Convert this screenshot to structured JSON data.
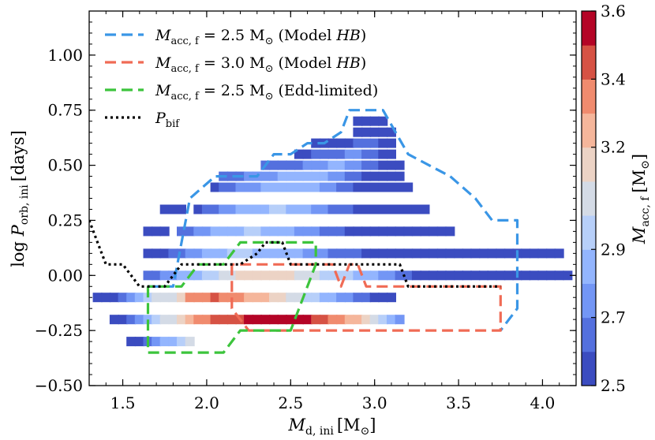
{
  "chart_data": {
    "type": "scatter",
    "xlabel_main": "M",
    "xlabel_sub": "d, ini",
    "xlabel_unit": "[M",
    "xlabel_unit_end": "]",
    "ylabel_pre": "log ",
    "ylabel_main": "P",
    "ylabel_sub": "orb, ini",
    "ylabel_unit": "[days]",
    "xlim": [
      1.3,
      4.2
    ],
    "ylim": [
      -0.5,
      1.2
    ],
    "xticks": [
      1.5,
      2.0,
      2.5,
      3.0,
      3.5,
      4.0
    ],
    "xtick_labels": [
      "1.5",
      "2.0",
      "2.5",
      "3.0",
      "3.5",
      "4.0"
    ],
    "yticks": [
      -0.5,
      -0.25,
      0.0,
      0.25,
      0.5,
      0.75,
      1.0
    ],
    "ytick_labels": [
      "−0.50",
      "−0.25",
      "0.00",
      "0.25",
      "0.50",
      "0.75",
      "1.00"
    ],
    "colorbar": {
      "label_main": "M",
      "label_sub": "acc, f",
      "label_unit": "[M",
      "label_unit_end": "]",
      "vmin": 2.5,
      "vmax": 3.6,
      "ticks": [
        2.5,
        2.7,
        2.9,
        3.2,
        3.4,
        3.6
      ],
      "tick_labels": [
        "2.5",
        "2.7",
        "2.9",
        "3.2",
        "3.4",
        "3.6"
      ],
      "bands": [
        {
          "lo": 2.5,
          "hi": 2.6,
          "color": "#3b4cc0"
        },
        {
          "lo": 2.6,
          "hi": 2.7,
          "color": "#5470de"
        },
        {
          "lo": 2.7,
          "hi": 2.8,
          "color": "#7396f5"
        },
        {
          "lo": 2.8,
          "hi": 2.9,
          "color": "#93b5fe"
        },
        {
          "lo": 2.9,
          "hi": 3.0,
          "color": "#b7cff9"
        },
        {
          "lo": 3.0,
          "hi": 3.1,
          "color": "#d4dbe6"
        },
        {
          "lo": 3.1,
          "hi": 3.2,
          "color": "#ecd3c5"
        },
        {
          "lo": 3.2,
          "hi": 3.3,
          "color": "#f5b69b"
        },
        {
          "lo": 3.3,
          "hi": 3.4,
          "color": "#f08b6e"
        },
        {
          "lo": 3.4,
          "hi": 3.5,
          "color": "#d65244"
        },
        {
          "lo": 3.5,
          "hi": 3.6,
          "color": "#b40426"
        }
      ]
    },
    "legend": {
      "placement": "upper-left",
      "entries": [
        {
          "main": "M",
          "sub": "acc, f",
          "rest": " = 2.5 M",
          "note": " (Model ",
          "note_it": "HB",
          "note_end": ")",
          "color": "#3a96e6",
          "dash": "14,7",
          "sun": true
        },
        {
          "main": "M",
          "sub": "acc, f",
          "rest": " = 3.0 M",
          "note": " (Model ",
          "note_it": "HB",
          "note_end": ")",
          "color": "#f06b55",
          "dash": "14,7",
          "sun": true
        },
        {
          "main": "M",
          "sub": "acc, f",
          "rest": " = 2.5 M",
          "note": " (Edd-limited)",
          "note_it": "",
          "note_end": "",
          "color": "#3cc43c",
          "dash": "14,7",
          "sun": true
        },
        {
          "main": "P",
          "sub": "bif",
          "rest": "",
          "note": "",
          "note_it": "",
          "note_end": "",
          "color": "#000000",
          "dash": "3,4",
          "sun": false
        }
      ]
    },
    "contours": [
      {
        "name": "Macc,f = 2.5 (Model HB)",
        "color": "#3a96e6",
        "dash": "14,7",
        "points": [
          [
            1.65,
            -0.05
          ],
          [
            1.8,
            -0.05
          ],
          [
            1.9,
            0.35
          ],
          [
            2.05,
            0.45
          ],
          [
            2.3,
            0.45
          ],
          [
            2.4,
            0.55
          ],
          [
            2.5,
            0.55
          ],
          [
            2.6,
            0.6
          ],
          [
            2.7,
            0.6
          ],
          [
            2.8,
            0.65
          ],
          [
            2.85,
            0.75
          ],
          [
            3.05,
            0.75
          ],
          [
            3.2,
            0.55
          ],
          [
            3.45,
            0.45
          ],
          [
            3.6,
            0.35
          ],
          [
            3.7,
            0.25
          ],
          [
            3.85,
            0.25
          ],
          [
            3.85,
            -0.15
          ],
          [
            3.75,
            -0.25
          ]
        ]
      },
      {
        "name": "Macc,f = 3.0 (Model HB)",
        "color": "#f06b55",
        "dash": "14,7",
        "points": [
          [
            2.15,
            0.05
          ],
          [
            2.15,
            -0.15
          ],
          [
            2.25,
            -0.25
          ],
          [
            3.75,
            -0.25
          ],
          [
            3.75,
            -0.05
          ],
          [
            2.95,
            -0.05
          ],
          [
            2.9,
            0.05
          ],
          [
            2.85,
            0.05
          ],
          [
            2.8,
            -0.05
          ],
          [
            2.75,
            0.05
          ],
          [
            2.15,
            0.05
          ]
        ]
      },
      {
        "name": "Macc,f = 2.5 (Edd-limited)",
        "color": "#3cc43c",
        "dash": "14,7",
        "points": [
          [
            1.65,
            -0.05
          ],
          [
            1.65,
            -0.35
          ],
          [
            2.1,
            -0.35
          ],
          [
            2.2,
            -0.25
          ],
          [
            2.5,
            -0.25
          ],
          [
            2.65,
            0.05
          ],
          [
            2.65,
            0.15
          ],
          [
            2.2,
            0.15
          ],
          [
            2.1,
            0.05
          ],
          [
            1.95,
            0.05
          ],
          [
            1.85,
            -0.05
          ],
          [
            1.65,
            -0.05
          ]
        ]
      },
      {
        "name": "Pbif",
        "color": "#000000",
        "dash": "3,4",
        "points": [
          [
            1.3,
            0.25
          ],
          [
            1.35,
            0.15
          ],
          [
            1.4,
            0.05
          ],
          [
            1.5,
            0.05
          ],
          [
            1.6,
            -0.05
          ],
          [
            1.75,
            -0.05
          ],
          [
            1.85,
            0.05
          ],
          [
            2.2,
            0.05
          ],
          [
            2.3,
            0.1
          ],
          [
            2.35,
            0.15
          ],
          [
            2.45,
            0.15
          ],
          [
            2.5,
            0.05
          ],
          [
            3.15,
            0.05
          ],
          [
            3.2,
            -0.05
          ],
          [
            3.75,
            -0.05
          ]
        ]
      }
    ],
    "marker_step_x": 0.05,
    "marker_step_y": 0.05,
    "rows": [
      {
        "y": 0.7,
        "x0": 2.9,
        "values": [
          2.5,
          2.5,
          2.5,
          2.5
        ]
      },
      {
        "y": 0.65,
        "x0": 2.9,
        "values": [
          2.5,
          2.5,
          2.5,
          2.5,
          2.5
        ]
      },
      {
        "y": 0.6,
        "x0": 2.65,
        "values": [
          2.5,
          2.5,
          2.5,
          2.5,
          2.55,
          2.6,
          2.6,
          2.6,
          2.5,
          2.5
        ]
      },
      {
        "y": 0.55,
        "x0": 2.55,
        "values": [
          2.55,
          2.55,
          2.6,
          2.6,
          2.65,
          2.65,
          2.7,
          2.7,
          2.65,
          2.6,
          2.55,
          2.55
        ]
      },
      {
        "y": 0.5,
        "x0": 2.35,
        "values": [
          2.6,
          2.6,
          2.6,
          2.65,
          2.65,
          2.7,
          2.75,
          2.75,
          2.8,
          2.8,
          2.75,
          2.7,
          2.65,
          2.6,
          2.55,
          2.55,
          2.5
        ]
      },
      {
        "y": 0.45,
        "x0": 2.1,
        "values": [
          2.6,
          2.6,
          2.65,
          2.7,
          2.7,
          2.75,
          2.75,
          2.8,
          2.8,
          2.85,
          2.85,
          2.85,
          2.8,
          2.75,
          2.7,
          2.65,
          2.6,
          2.55,
          2.5,
          2.5,
          2.5,
          2.5
        ]
      },
      {
        "y": 0.4,
        "x0": 2.05,
        "values": [
          2.55,
          2.6,
          2.65,
          2.7,
          2.75,
          2.75,
          2.8,
          2.85,
          2.85,
          2.85,
          2.85,
          2.8,
          2.8,
          2.75,
          2.7,
          2.65,
          2.6,
          2.55,
          2.55,
          2.5,
          2.5,
          2.5,
          2.5,
          2.5
        ]
      },
      {
        "y": 0.3,
        "x0": 1.75,
        "values": [
          2.5,
          2.5,
          2.5
        ]
      },
      {
        "y": 0.3,
        "x0": 1.95,
        "values": [
          2.55,
          2.6,
          2.65,
          2.7,
          2.75,
          2.8,
          2.85,
          2.85,
          2.85,
          2.9,
          2.9,
          2.85,
          2.8,
          2.8,
          2.75,
          2.7,
          2.65,
          2.6,
          2.6,
          2.55,
          2.5,
          2.5,
          2.5,
          2.5,
          2.5,
          2.5,
          2.5,
          2.5
        ]
      },
      {
        "y": 0.2,
        "x0": 1.65,
        "values": [
          2.5,
          2.55,
          2.55
        ]
      },
      {
        "y": 0.2,
        "x0": 1.85,
        "values": [
          2.6,
          2.65,
          2.7,
          2.75,
          2.8,
          2.85,
          2.85,
          2.85,
          2.9,
          2.9,
          2.85,
          2.85,
          2.8,
          2.8,
          2.75,
          2.7,
          2.7,
          2.65,
          2.6,
          2.6,
          2.55,
          2.55,
          2.5,
          2.5,
          2.5,
          2.5,
          2.5,
          2.5,
          2.5,
          2.5,
          2.5,
          2.5,
          2.5
        ]
      },
      {
        "y": 0.1,
        "x0": 1.65,
        "values": [
          2.5,
          2.55,
          2.55,
          2.6,
          2.65,
          2.7,
          2.75,
          2.8,
          2.85,
          2.85,
          2.9,
          2.9,
          2.9,
          2.85,
          2.85,
          2.85,
          2.85,
          2.8,
          2.8,
          2.75,
          2.7,
          2.7,
          2.65,
          2.65,
          2.6,
          2.6,
          2.55,
          2.55,
          2.5,
          2.5,
          2.5,
          2.5,
          2.5,
          2.5,
          2.5,
          2.5,
          2.5,
          2.5,
          2.5,
          2.5,
          2.5,
          2.5,
          2.5,
          2.5,
          2.5,
          2.5,
          2.5,
          2.5,
          2.5,
          2.5
        ]
      },
      {
        "y": 0.0,
        "x0": 1.65,
        "values": [
          2.6,
          2.65,
          2.7,
          2.75,
          2.8,
          2.8,
          2.85,
          2.9,
          2.9,
          3.0,
          3.05,
          3.1,
          3.15,
          3.15,
          3.1,
          3.1,
          3.15,
          3.1,
          3.05,
          3.05,
          3.0,
          2.95,
          2.95,
          2.9,
          2.9,
          2.85,
          2.85,
          2.8,
          2.75,
          2.7,
          2.65,
          2.6,
          2.55,
          2.5,
          2.5,
          2.5,
          2.5,
          2.5,
          2.5,
          2.5,
          2.5,
          2.5,
          2.5,
          2.5,
          2.5,
          2.5,
          2.5,
          2.5,
          2.5,
          2.5,
          2.5
        ]
      },
      {
        "y": -0.1,
        "x0": 1.35,
        "values": [
          2.5,
          2.5,
          2.55,
          2.6,
          2.75,
          2.85,
          2.9,
          3.0,
          3.0,
          3.05,
          3.1,
          3.3,
          3.35,
          3.35,
          3.4,
          3.35,
          3.3,
          3.3,
          3.25,
          3.2,
          3.2,
          3.15,
          3.1,
          3.05,
          3.0,
          2.95,
          2.9,
          2.85,
          2.8,
          2.75,
          2.7,
          2.65,
          2.6,
          2.55,
          2.5,
          2.5
        ]
      },
      {
        "y": -0.2,
        "x0": 1.45,
        "values": [
          2.5,
          2.55,
          2.6,
          2.7,
          2.8,
          2.9,
          3.0,
          3.05,
          3.1,
          3.2,
          3.3,
          3.35,
          3.4,
          3.4,
          3.45,
          3.45,
          3.5,
          3.55,
          3.55,
          3.55,
          3.55,
          3.55,
          3.5,
          3.5,
          3.45,
          3.4,
          3.35,
          3.3,
          3.25,
          3.2,
          3.1,
          3.0,
          2.9,
          2.8,
          2.7
        ]
      },
      {
        "y": -0.3,
        "x0": 1.55,
        "values": [
          2.5,
          2.55,
          2.6,
          2.7,
          2.8,
          2.85,
          2.95,
          3.0
        ]
      }
    ]
  }
}
